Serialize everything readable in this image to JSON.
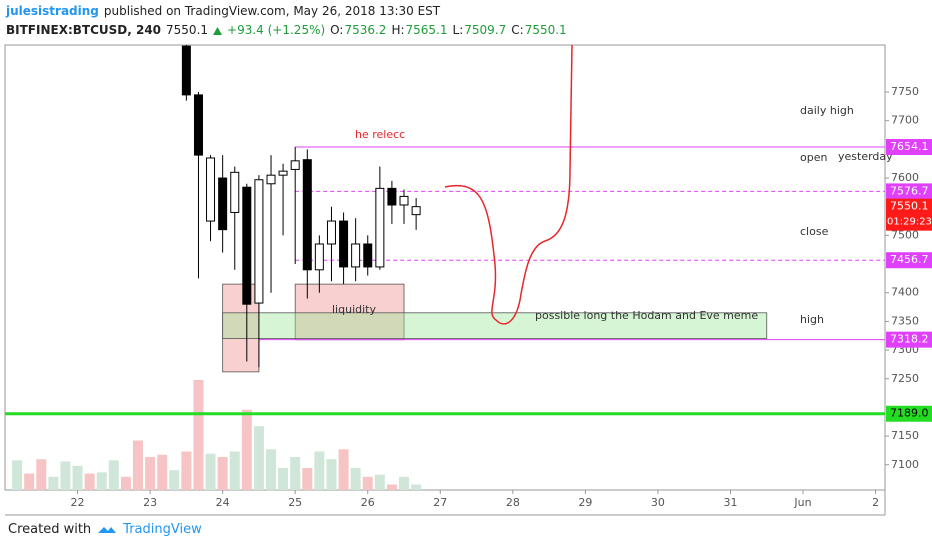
{
  "header": {
    "author": "julesistrading",
    "published": "published on TradingView.com, May 26, 2018 13:30 EST",
    "symbol": "BITFINEX:BTCUSD, 240",
    "last": 7550.1,
    "change": "+93.4 (+1.25%)",
    "ohlc": [
      {
        "label": "O:",
        "value": 7536.2
      },
      {
        "label": "H:",
        "value": 7565.1
      },
      {
        "label": "L:",
        "value": 7509.7
      },
      {
        "label": "C:",
        "value": 7550.1
      }
    ]
  },
  "footer": {
    "created": "Created with",
    "brand": "TradingView"
  },
  "chart_data": {
    "type": "candlestick",
    "xlim": [
      21.0,
      33.13
    ],
    "ylim": [
      7056,
      7832
    ],
    "xticks": [
      22,
      23,
      24,
      25,
      26,
      27,
      28,
      29,
      30,
      31,
      {
        "value": 32,
        "label": "Jun"
      },
      {
        "value": 33,
        "label": "2"
      }
    ],
    "yticks": [
      7100,
      7150,
      7250,
      7300,
      7350,
      7400,
      7500,
      7600,
      7700,
      7750
    ],
    "up_color": "#ffffff",
    "down_color": "#000000",
    "x": [
      23.5,
      23.667,
      23.833,
      24.0,
      24.167,
      24.333,
      24.5,
      24.667,
      24.833,
      25.0,
      25.167,
      25.333,
      25.5,
      25.667,
      25.833,
      26.0,
      26.167,
      26.333,
      26.5,
      26.667
    ],
    "open": [
      7830,
      7745,
      7525,
      7600,
      7540,
      7584,
      7382,
      7590,
      7605,
      7615,
      7632,
      7440,
      7485,
      7525,
      7445,
      7485,
      7445,
      7582,
      7553,
      7536.2
    ],
    "high": [
      7832,
      7750,
      7640,
      7640,
      7620,
      7590,
      7605,
      7640,
      7625,
      7654,
      7650,
      7500,
      7550,
      7540,
      7530,
      7500,
      7620,
      7595,
      7580,
      7565.1
    ],
    "low": [
      7735,
      7425,
      7490,
      7470,
      7440,
      7280,
      7270,
      7400,
      7500,
      7450,
      7390,
      7400,
      7420,
      7415,
      7420,
      7430,
      7440,
      7520,
      7520,
      7509.7
    ],
    "close": [
      7745,
      7640,
      7635,
      7510,
      7610,
      7380,
      7597,
      7605,
      7612,
      7630,
      7440,
      7485,
      7525,
      7445,
      7485,
      7445,
      7582,
      7553,
      7568,
      7550.1
    ],
    "volume": {
      "ylim": [
        0,
        100
      ],
      "x": [
        21.167,
        21.333,
        21.5,
        21.667,
        21.833,
        22.0,
        22.167,
        22.333,
        22.5,
        22.667,
        22.833,
        23.0,
        23.167,
        23.333,
        23.5,
        23.667,
        23.833,
        24.0,
        24.167,
        24.333,
        24.5,
        24.667,
        24.833,
        25.0,
        25.167,
        25.333,
        25.5,
        25.667,
        25.833,
        26.0,
        26.167,
        26.333,
        26.5,
        26.667
      ],
      "values": [
        27,
        15,
        28,
        12,
        26,
        22,
        15,
        16,
        27,
        12,
        45,
        30,
        32,
        18,
        35,
        100,
        33,
        30,
        35,
        73,
        58,
        37,
        20,
        30,
        20,
        35,
        28,
        37,
        20,
        12,
        14,
        5,
        12,
        5
      ],
      "colors": [
        "#cfe6d8",
        "#f6c4c4",
        "#f6c4c4",
        "#cfe6d8",
        "#cfe6d8",
        "#cfe6d8",
        "#f6c4c4",
        "#cfe6d8",
        "#cfe6d8",
        "#f6c4c4",
        "#f6c4c4",
        "#f6c4c4",
        "#f6c4c4",
        "#cfe6d8",
        "#f6c4c4",
        "#f6c4c4",
        "#cfe6d8",
        "#f6c4c4",
        "#cfe6d8",
        "#f6c4c4",
        "#cfe6d8",
        "#cfe6d8",
        "#cfe6d8",
        "#cfe6d8",
        "#f6c4c4",
        "#cfe6d8",
        "#cfe6d8",
        "#f6c4c4",
        "#cfe6d8",
        "#f6c4c4",
        "#cfe6d8",
        "#f6c4c4",
        "#cfe6d8",
        "#cfe6d8"
      ]
    },
    "levels": [
      {
        "value": 7654.1,
        "start": 25.0,
        "color": "#e040fb",
        "dashed": false
      },
      {
        "value": 7576.7,
        "start": 25.0,
        "color": "#e040fb",
        "dashed": true
      },
      {
        "value": 7456.7,
        "start": 25.0,
        "color": "#e040fb",
        "dashed": true
      },
      {
        "value": 7318.2,
        "start": 24.5,
        "color": "#e040fb",
        "dashed": false
      },
      {
        "value": 7189,
        "value_label": "7189.0",
        "start": 21.0,
        "color": "#22dd22",
        "dashed": false
      }
    ],
    "last_price": {
      "value": 7550.1,
      "countdown": "01:29:23",
      "color": "#ff1a1a"
    },
    "zones": [
      {
        "x": [
          24.0,
          24.5
        ],
        "y": [
          7262,
          7415
        ],
        "color": "rgba(240,150,150,0.45)"
      },
      {
        "x": [
          25.0,
          26.5
        ],
        "y": [
          7318,
          7415
        ],
        "color": "rgba(240,150,150,0.45)"
      },
      {
        "x": [
          24.0,
          31.5
        ],
        "y": [
          7320,
          7365
        ],
        "color": "rgba(150,230,150,0.4)"
      }
    ],
    "annotations": [
      "daily high",
      "open",
      "yesterday",
      "close",
      "high",
      "he relecc",
      "liquidity",
      "possible long the Hodam and Eve meme"
    ]
  }
}
